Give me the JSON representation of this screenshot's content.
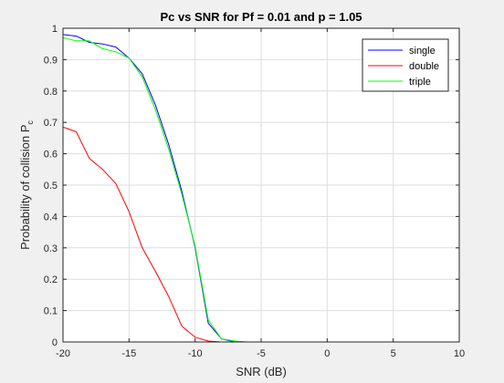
{
  "chart_data": {
    "type": "line",
    "title": "Pc vs SNR for Pf = 0.01 and p = 1.05",
    "xlabel": "SNR (dB)",
    "ylabel_main": "Probability of collision P",
    "ylabel_sub": "c",
    "xlim": [
      -20,
      10
    ],
    "ylim": [
      0,
      1
    ],
    "xticks": [
      -20,
      -15,
      -10,
      -5,
      0,
      5,
      10
    ],
    "xtick_labels": [
      "-20",
      "-15",
      "-10",
      "-5",
      "0",
      "5",
      "10"
    ],
    "yticks": [
      0,
      0.1,
      0.2,
      0.3,
      0.4,
      0.5,
      0.6,
      0.7,
      0.8,
      0.9,
      1
    ],
    "ytick_labels": [
      "0",
      "0.1",
      "0.2",
      "0.3",
      "0.4",
      "0.5",
      "0.6",
      "0.7",
      "0.8",
      "0.9",
      "1"
    ],
    "grid": true,
    "legend_position": "top-right",
    "series": [
      {
        "name": "single",
        "color": "#0000ff",
        "x": [
          -20,
          -19,
          -18,
          -17,
          -16,
          -15,
          -14,
          -13,
          -12,
          -11,
          -10,
          -9,
          -8,
          -7,
          -6,
          -5,
          -4,
          -3,
          -2,
          -1,
          0,
          1,
          2,
          3,
          4,
          5,
          6,
          7,
          8,
          9,
          10
        ],
        "y": [
          0.98,
          0.975,
          0.955,
          0.95,
          0.94,
          0.905,
          0.855,
          0.755,
          0.63,
          0.48,
          0.3,
          0.06,
          0.01,
          0,
          0,
          0,
          0,
          0,
          0,
          0,
          0,
          0,
          0,
          0,
          0,
          0,
          0,
          0,
          0,
          0,
          0
        ]
      },
      {
        "name": "double",
        "color": "#ff0000",
        "x": [
          -20,
          -19,
          -18,
          -17,
          -16,
          -15,
          -14,
          -13,
          -12,
          -11,
          -10,
          -9,
          -8,
          -7,
          -6,
          -5,
          -4,
          -3,
          -2,
          -1,
          0,
          1,
          2,
          3,
          4,
          5,
          6,
          7,
          8,
          9,
          10
        ],
        "y": [
          0.685,
          0.67,
          0.585,
          0.55,
          0.505,
          0.415,
          0.3,
          0.225,
          0.145,
          0.05,
          0.015,
          0.003,
          0,
          0,
          0,
          0,
          0,
          0,
          0,
          0,
          0,
          0,
          0,
          0,
          0,
          0,
          0,
          0,
          0,
          0,
          0
        ]
      },
      {
        "name": "triple",
        "color": "#00ff00",
        "x": [
          -20,
          -19,
          -18,
          -17,
          -16,
          -15,
          -14,
          -13,
          -12,
          -11,
          -10,
          -9,
          -8,
          -7,
          -6,
          -5,
          -4,
          -3,
          -2,
          -1,
          0,
          1,
          2,
          3,
          4,
          5,
          6,
          7,
          8,
          9,
          10
        ],
        "y": [
          0.97,
          0.96,
          0.96,
          0.935,
          0.925,
          0.905,
          0.845,
          0.74,
          0.615,
          0.47,
          0.305,
          0.07,
          0.01,
          0.003,
          0,
          0,
          0,
          0,
          0,
          0,
          0,
          0,
          0,
          0,
          0,
          0,
          0,
          0,
          0,
          0,
          0
        ]
      }
    ]
  }
}
